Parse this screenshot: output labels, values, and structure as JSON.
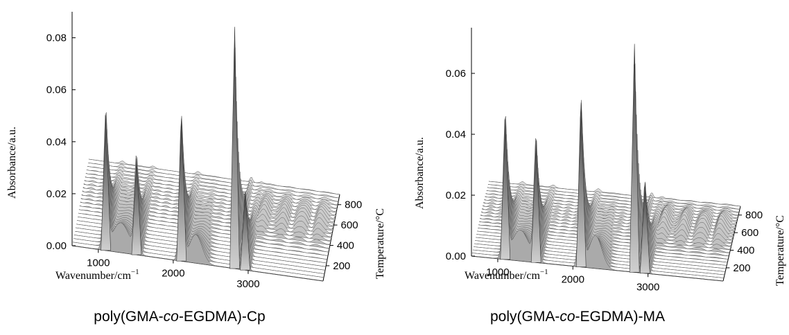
{
  "chart_data": [
    {
      "type": "area",
      "title": "poly(GMA-co-EGDMA)-Cp",
      "title_parts": {
        "before": "poly(GMA-",
        "italic": "co",
        "after": "-EGDMA)-Cp"
      },
      "xlabel": "Wavenumber/cm",
      "xlabel_sup": "−1",
      "ylabel": "Absorbance/a.u.",
      "zlabel": "Temperature/°C",
      "x_ticks": [
        "1000",
        "2000",
        "3000"
      ],
      "y_ticks": [
        "0.00",
        "0.02",
        "0.04",
        "0.06",
        "0.08"
      ],
      "z_ticks": [
        "200",
        "400",
        "600",
        "800"
      ],
      "xlim": [
        650,
        4000
      ],
      "ylim": [
        0,
        0.09
      ],
      "zlim": [
        50,
        900
      ],
      "peaks": [
        {
          "x": 1100,
          "y": 0.052
        },
        {
          "x": 1510,
          "y": 0.037
        },
        {
          "x": 2110,
          "y": 0.055
        },
        {
          "x": 2820,
          "y": 0.093
        },
        {
          "x": 2960,
          "y": 0.03
        }
      ]
    },
    {
      "type": "area",
      "title": "poly(GMA-co-EGDMA)-MA",
      "title_parts": {
        "before": "poly(GMA-",
        "italic": "co",
        "after": "-EGDMA)-MA"
      },
      "xlabel": "Wavenumber/cm",
      "xlabel_sup": "−1",
      "ylabel": "Absorbance/a.u.",
      "zlabel": "Temperature/°C",
      "x_ticks": [
        "1000",
        "2000",
        "3000"
      ],
      "y_ticks": [
        "0.00",
        "0.02",
        "0.04",
        "0.06"
      ],
      "z_ticks": [
        "200",
        "400",
        "600",
        "800"
      ],
      "xlim": [
        650,
        4000
      ],
      "ylim": [
        0,
        0.075
      ],
      "zlim": [
        50,
        900
      ],
      "peaks": [
        {
          "x": 1100,
          "y": 0.046
        },
        {
          "x": 1510,
          "y": 0.04
        },
        {
          "x": 2110,
          "y": 0.054
        },
        {
          "x": 2820,
          "y": 0.075
        },
        {
          "x": 2960,
          "y": 0.03
        }
      ]
    }
  ]
}
